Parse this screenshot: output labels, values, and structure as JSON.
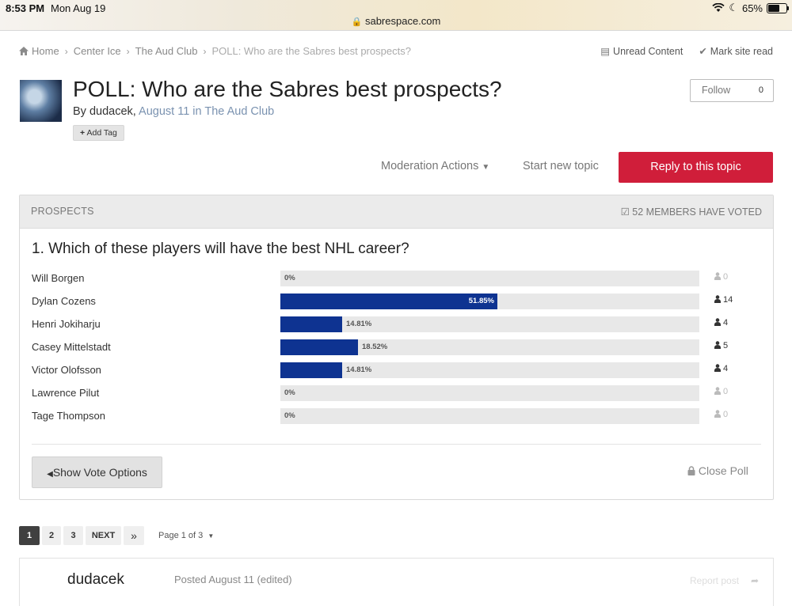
{
  "status_bar": {
    "time": "8:53 PM",
    "date": "Mon Aug 19",
    "url": "sabrespace.com",
    "battery": "65%"
  },
  "breadcrumb": {
    "items": [
      "Home",
      "Center Ice",
      "The Aud Club",
      "POLL: Who are the Sabres best prospects?"
    ]
  },
  "top_actions": {
    "unread": "Unread Content",
    "mark_read": "Mark site read"
  },
  "topic": {
    "title": "POLL: Who are the Sabres best prospects?",
    "by_prefix": "By ",
    "author": "dudacek",
    "comma": ", ",
    "date": "August 11",
    "in_text": " in ",
    "forum": "The Aud Club",
    "add_tag": "Add Tag",
    "follow_label": "Follow",
    "follow_count": "0"
  },
  "actions": {
    "moderation": "Moderation Actions",
    "start_new": "Start new topic",
    "reply": "Reply to this topic"
  },
  "poll": {
    "header": "PROSPECTS",
    "voted": "52 MEMBERS HAVE VOTED",
    "question": "1. Which of these players will have the best NHL career?",
    "options": [
      {
        "name": "Will Borgen",
        "percent": 0,
        "percent_label": "0%",
        "votes": "0"
      },
      {
        "name": "Dylan Cozens",
        "percent": 51.85,
        "percent_label": "51.85%",
        "votes": "14"
      },
      {
        "name": "Henri Jokiharju",
        "percent": 14.81,
        "percent_label": "14.81%",
        "votes": "4"
      },
      {
        "name": "Casey Mittelstadt",
        "percent": 18.52,
        "percent_label": "18.52%",
        "votes": "5"
      },
      {
        "name": "Victor Olofsson",
        "percent": 14.81,
        "percent_label": "14.81%",
        "votes": "4"
      },
      {
        "name": "Lawrence Pilut",
        "percent": 0,
        "percent_label": "0%",
        "votes": "0"
      },
      {
        "name": "Tage Thompson",
        "percent": 0,
        "percent_label": "0%",
        "votes": "0"
      }
    ],
    "show_options": "Show Vote Options",
    "close": "Close Poll",
    "bar_color": "#0e3391"
  },
  "pagination": {
    "pages": [
      "1",
      "2",
      "3"
    ],
    "next": "NEXT",
    "last": "»",
    "page_of": "Page 1 of 3"
  },
  "post": {
    "author": "dudacek",
    "posted": "Posted August 11 (edited)",
    "report": "Report post"
  },
  "colors": {
    "accent_red": "#d01e3a",
    "link_blue": "#7a92b0"
  }
}
